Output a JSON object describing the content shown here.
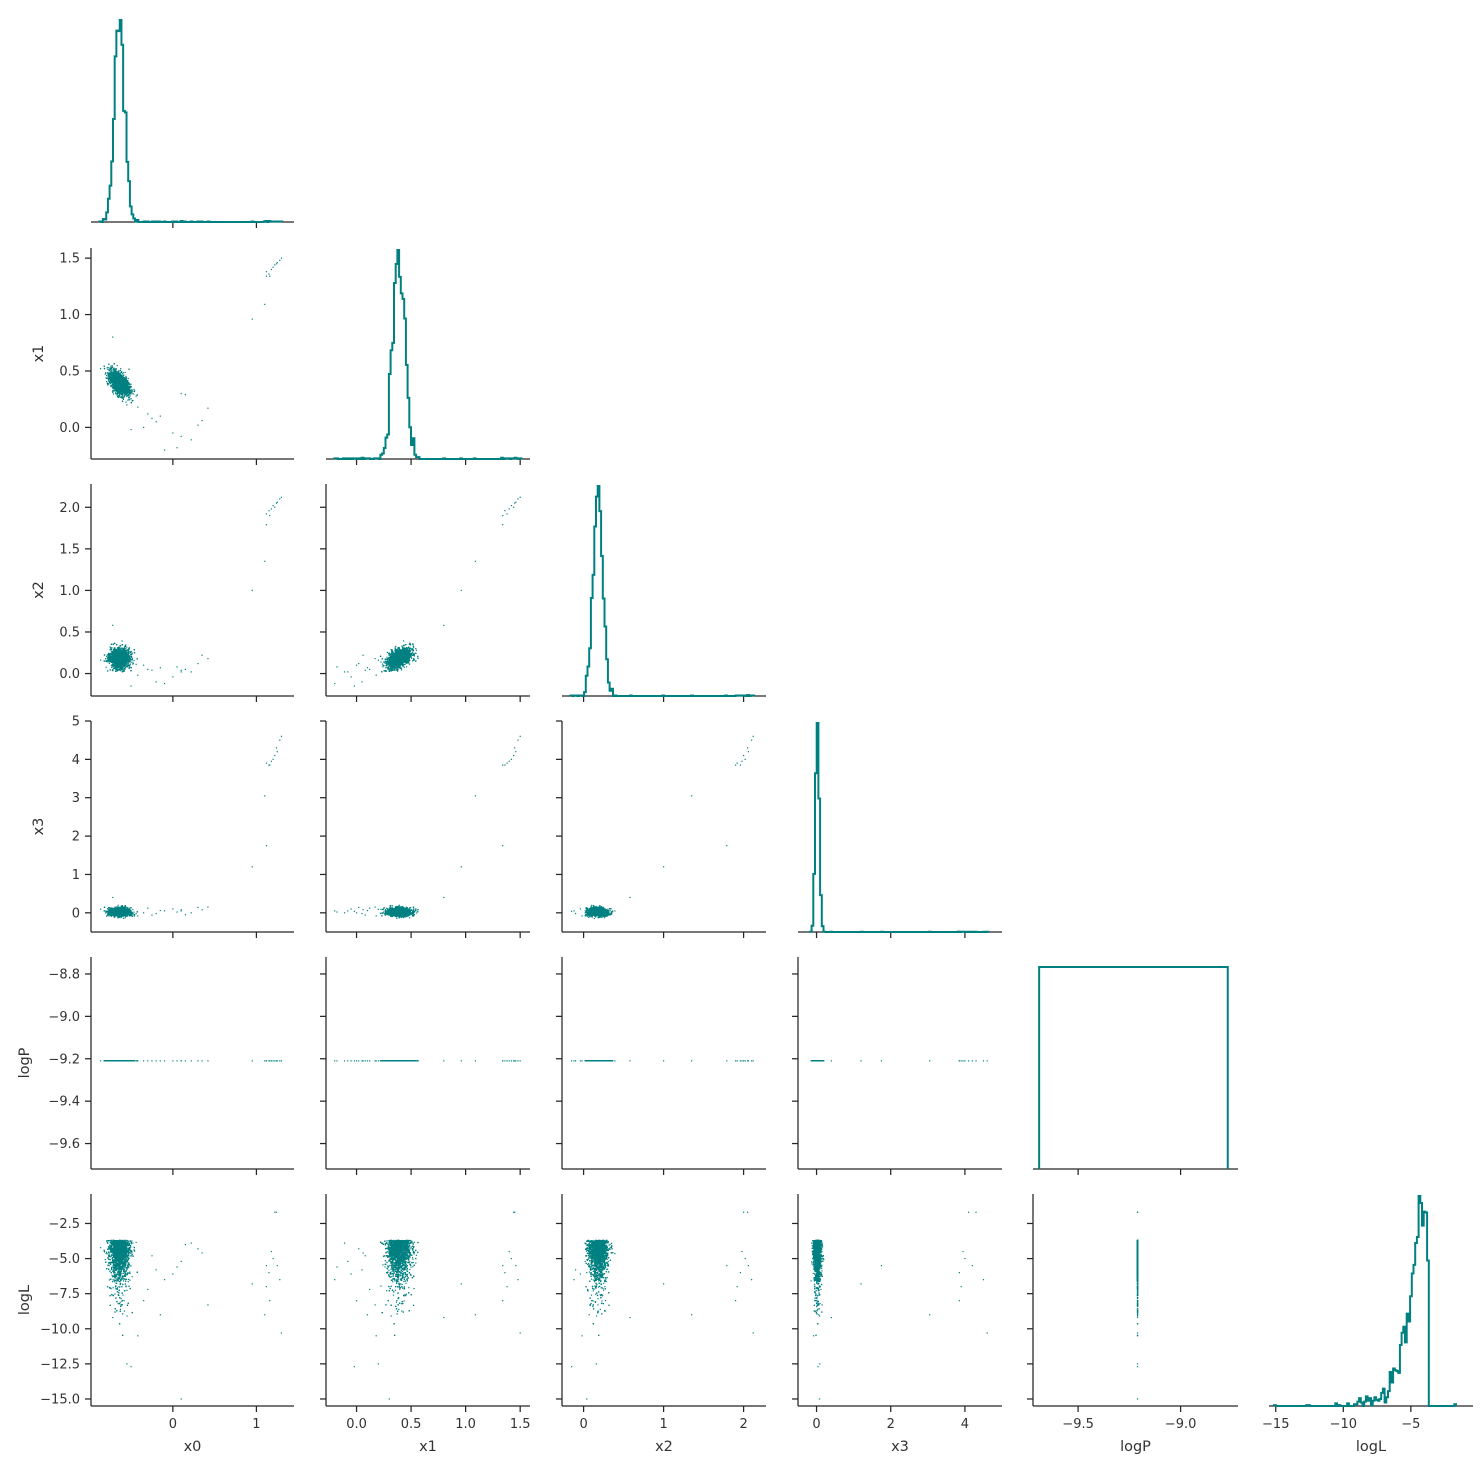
{
  "chart_data": {
    "type": "scatter",
    "layout": "corner-plot",
    "color": "#008080",
    "variables": [
      "x0",
      "x1",
      "x2",
      "x3",
      "logP",
      "logL"
    ],
    "axis_labels": {
      "x0": "x0",
      "x1": "x1",
      "x2": "x2",
      "x3": "x3",
      "logP": "logP",
      "logL": "logL"
    },
    "ranges": {
      "x0": [
        -0.98,
        1.45
      ],
      "x1": [
        -0.28,
        1.59
      ],
      "x2": [
        -0.27,
        2.28
      ],
      "x3": [
        -0.5,
        5.0
      ],
      "logP": [
        -9.72,
        -8.72
      ],
      "logL": [
        -15.5,
        -0.4
      ]
    },
    "ticks": {
      "x0": [
        0,
        1
      ],
      "x1": [
        0.0,
        0.5,
        1.0,
        1.5
      ],
      "x2": [
        0,
        1,
        2
      ],
      "x3": [
        0,
        2,
        4
      ],
      "logP": [
        -9.5,
        -9.0
      ],
      "logL": [
        -15,
        -10,
        -5
      ]
    },
    "y_ticks": {
      "x1": [
        0.0,
        0.5,
        1.0,
        1.5
      ],
      "x2": [
        0.0,
        0.5,
        1.0,
        1.5,
        2.0
      ],
      "x3": [
        0,
        1,
        2,
        3,
        4,
        5
      ],
      "logP": [
        -8.8,
        -9.0,
        -9.2,
        -9.4,
        -9.6
      ],
      "logL": [
        -2.5,
        -5.0,
        -7.5,
        -10.0,
        -12.5,
        -15.0
      ]
    },
    "tick_labels": {
      "x0": [
        "0",
        "1"
      ],
      "x1": [
        "0.0",
        "0.5",
        "1.0",
        "1.5"
      ],
      "x2": [
        "0",
        "1",
        "2"
      ],
      "x3": [
        "0",
        "2",
        "4"
      ],
      "logP": [
        "−9.5",
        "−9.0"
      ],
      "logL": [
        "−15",
        "−10",
        "−5"
      ]
    },
    "y_tick_labels": {
      "x1": [
        "0.0",
        "0.5",
        "1.0",
        "1.5"
      ],
      "x2": [
        "0.0",
        "0.5",
        "1.0",
        "1.5",
        "2.0"
      ],
      "x3": [
        "0",
        "1",
        "2",
        "3",
        "4",
        "5"
      ],
      "logP": [
        "−8.8",
        "−9.0",
        "−9.2",
        "−9.4",
        "−9.6"
      ],
      "logL": [
        "−2.5",
        "−5.0",
        "−7.5",
        "−10.0",
        "−12.5",
        "−15.0"
      ]
    },
    "bulk": {
      "x0": {
        "mean": -0.64,
        "sd": 0.06
      },
      "x1": {
        "mean": 0.39,
        "sd": 0.055
      },
      "x2": {
        "mean": 0.18,
        "sd": 0.06
      },
      "x3": {
        "mean": 0.02,
        "sd": 0.05
      },
      "logP": -9.21,
      "logL": {
        "peak": -3.7,
        "mode_range": [
          -8.0,
          -3.6
        ]
      },
      "corr_x0_x1": -0.6,
      "corr_x1_x2": 0.6,
      "n_points": 3000
    },
    "outliers": [
      {
        "x0": 1.15,
        "x1": 1.36,
        "x2": 1.96,
        "x3": 3.85,
        "logL": -6.0
      },
      {
        "x0": 1.2,
        "x1": 1.42,
        "x2": 2.02,
        "x3": 4.0,
        "logL": -5.0
      },
      {
        "x0": 1.25,
        "x1": 1.46,
        "x2": 2.06,
        "x3": 4.2,
        "logL": -5.5
      },
      {
        "x0": 1.3,
        "x1": 1.5,
        "x2": 2.12,
        "x3": 4.6,
        "logL": -10.3
      },
      {
        "x0": 1.22,
        "x1": 1.44,
        "x2": 2.0,
        "x3": 4.1,
        "logL": -1.7
      },
      {
        "x0": 1.28,
        "x1": 1.48,
        "x2": 2.1,
        "x3": 4.5,
        "logL": -6.5
      },
      {
        "x0": 1.12,
        "x1": 1.38,
        "x2": 1.92,
        "x3": 3.9,
        "logL": -7.0
      },
      {
        "x0": 1.18,
        "x1": 1.4,
        "x2": 1.98,
        "x3": 3.95,
        "logL": -4.5
      },
      {
        "x0": 1.24,
        "x1": 1.45,
        "x2": 2.05,
        "x3": 4.3,
        "logL": -1.7
      },
      {
        "x0": 1.16,
        "x1": 1.34,
        "x2": 1.9,
        "x3": 3.85,
        "logL": -8.0
      },
      {
        "x0": 1.1,
        "x1": 1.09,
        "x2": 1.35,
        "x3": 3.05,
        "logL": -9.0
      },
      {
        "x0": 1.12,
        "x1": 1.34,
        "x2": 1.79,
        "x3": 1.75,
        "logL": -5.5
      },
      {
        "x0": 0.95,
        "x1": 0.96,
        "x2": 1.0,
        "x3": 1.2,
        "logL": -6.8
      },
      {
        "x0": -0.72,
        "x1": 0.8,
        "x2": 0.58,
        "x3": 0.4,
        "logL": -9.2
      },
      {
        "x0": 0.42,
        "x1": 0.17,
        "x2": 0.18,
        "x3": 0.15,
        "logL": -8.3
      },
      {
        "x0": 0.35,
        "x1": 0.06,
        "x2": 0.22,
        "x3": 0.08,
        "logL": -4.6
      },
      {
        "x0": 0.15,
        "x1": 0.29,
        "x2": 0.05,
        "x3": -0.05,
        "logL": -4.0
      },
      {
        "x0": 0.1,
        "x1": -0.08,
        "x2": 0.02,
        "x3": 0.05,
        "logL": -5.2
      },
      {
        "x0": 0.05,
        "x1": -0.18,
        "x2": 0.08,
        "x3": 0.02,
        "logL": -5.6
      },
      {
        "x0": 0.0,
        "x1": -0.05,
        "x2": -0.04,
        "x3": 0.1,
        "logL": -6.1
      },
      {
        "x0": -0.1,
        "x1": -0.2,
        "x2": -0.12,
        "x3": 0.05,
        "logL": -6.5
      },
      {
        "x0": -0.2,
        "x1": 0.05,
        "x2": -0.1,
        "x3": -0.02,
        "logL": -5.8
      },
      {
        "x0": -0.3,
        "x1": 0.12,
        "x2": 0.05,
        "x3": 0.12,
        "logL": -7.2
      },
      {
        "x0": -0.35,
        "x1": 0.0,
        "x2": 0.1,
        "x3": 0.0,
        "logL": -8.0
      },
      {
        "x0": -0.42,
        "x1": 0.18,
        "x2": -0.02,
        "x3": -0.08,
        "logL": -10.5
      },
      {
        "x0": 0.1,
        "x1": 0.3,
        "x2": 0.04,
        "x3": 0.08,
        "logL": -15.0
      },
      {
        "x0": 0.22,
        "x1": -0.11,
        "x2": 0.02,
        "x3": 0.0,
        "logL": -3.9
      },
      {
        "x0": -0.5,
        "x1": -0.02,
        "x2": -0.15,
        "x3": 0.04,
        "logL": -12.7
      },
      {
        "x0": -0.55,
        "x1": 0.2,
        "x2": 0.16,
        "x3": 0.09,
        "logL": -12.5
      },
      {
        "x0": -0.15,
        "x1": 0.1,
        "x2": 0.07,
        "x3": 0.06,
        "logL": -9.0
      },
      {
        "x0": 0.3,
        "x1": 0.02,
        "x2": 0.12,
        "x3": 0.14,
        "logL": -4.3
      },
      {
        "x0": -0.25,
        "x1": 0.08,
        "x2": 0.04,
        "x3": -0.06,
        "logL": -4.8
      }
    ]
  }
}
